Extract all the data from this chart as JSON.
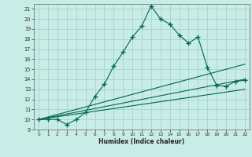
{
  "xlabel": "Humidex (Indice chaleur)",
  "background_color": "#c8ece6",
  "grid_color": "#a8d4cc",
  "line_color": "#006655",
  "xlim": [
    -0.5,
    22.5
  ],
  "ylim": [
    9,
    21.5
  ],
  "yticks": [
    9,
    10,
    11,
    12,
    13,
    14,
    15,
    16,
    17,
    18,
    19,
    20,
    21
  ],
  "xticks": [
    0,
    1,
    2,
    3,
    4,
    5,
    6,
    7,
    8,
    9,
    10,
    11,
    12,
    13,
    14,
    15,
    16,
    17,
    18,
    19,
    20,
    21,
    22
  ],
  "line1_x": [
    0,
    1,
    2,
    3,
    4,
    5,
    6,
    7,
    8,
    9,
    10,
    11,
    12,
    13,
    14,
    15,
    16,
    17,
    18,
    19,
    20,
    21,
    22
  ],
  "line1_y": [
    10.0,
    10.0,
    10.0,
    9.5,
    10.0,
    10.7,
    12.3,
    13.5,
    15.3,
    16.7,
    18.2,
    19.3,
    21.3,
    20.0,
    19.5,
    18.4,
    17.6,
    18.2,
    15.2,
    13.4,
    13.3,
    13.8,
    13.9
  ],
  "line2_x": [
    0,
    22
  ],
  "line2_y": [
    10.0,
    15.5
  ],
  "line3_x": [
    0,
    22
  ],
  "line3_y": [
    10.0,
    14.0
  ],
  "line4_x": [
    0,
    22
  ],
  "line4_y": [
    10.0,
    13.0
  ]
}
